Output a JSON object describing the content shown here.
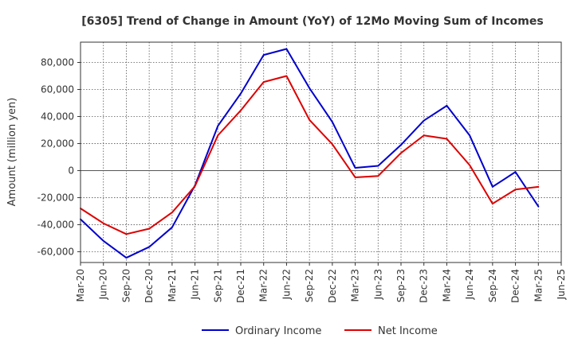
{
  "chart_data": {
    "type": "line",
    "title": "[6305]  Trend of Change in Amount (YoY) of 12Mo Moving Sum of Incomes",
    "ylabel": "Amount (million yen)",
    "xlabel": "",
    "ylim": [
      -68000,
      95000
    ],
    "yticks": [
      -60000,
      -40000,
      -20000,
      0,
      20000,
      40000,
      60000,
      80000
    ],
    "ytick_labels": [
      "-60,000",
      "-40,000",
      "-20,000",
      "0",
      "20,000",
      "40,000",
      "60,000",
      "80,000"
    ],
    "categories": [
      "Mar-20",
      "Jun-20",
      "Sep-20",
      "Dec-20",
      "Mar-21",
      "Jun-21",
      "Sep-21",
      "Dec-21",
      "Mar-22",
      "Jun-22",
      "Sep-22",
      "Dec-22",
      "Mar-23",
      "Jun-23",
      "Sep-23",
      "Dec-23",
      "Mar-24",
      "Jun-24",
      "Sep-24",
      "Dec-24",
      "Mar-25",
      "Jun-25"
    ],
    "grid": true,
    "legend_position": "bottom",
    "series": [
      {
        "name": "Ordinary Income",
        "color": "#0000cc",
        "values": [
          -36000,
          -52000,
          -64500,
          -56500,
          -42000,
          -11000,
          33000,
          57000,
          85500,
          90000,
          61000,
          36000,
          2000,
          3500,
          19000,
          37000,
          48000,
          26000,
          -12000,
          -1000,
          -26500,
          null
        ]
      },
      {
        "name": "Net Income",
        "color": "#dd0000",
        "values": [
          -28000,
          -39000,
          -47000,
          -43000,
          -31000,
          -11500,
          26000,
          44500,
          65500,
          70000,
          37500,
          19500,
          -5000,
          -4000,
          13000,
          26000,
          23500,
          4000,
          -24500,
          -14000,
          -12000,
          null
        ]
      }
    ]
  }
}
